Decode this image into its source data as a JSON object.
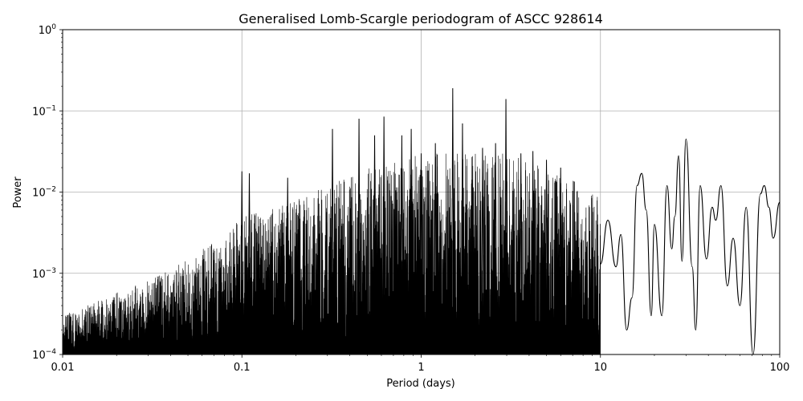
{
  "chart_data": {
    "type": "line",
    "title": "Generalised Lomb-Scargle periodogram of ASCC 928614",
    "xlabel": "Period (days)",
    "ylabel": "Power",
    "xscale": "log",
    "yscale": "log",
    "xlim": [
      0.01,
      100
    ],
    "ylim": [
      0.0001,
      1
    ],
    "grid": true,
    "x_ticks": [
      {
        "value": 0.01,
        "label": "0.01"
      },
      {
        "value": 0.1,
        "label": "0.1"
      },
      {
        "value": 1,
        "label": "1"
      },
      {
        "value": 10,
        "label": "10"
      },
      {
        "value": 100,
        "label": "100"
      }
    ],
    "y_ticks": [
      {
        "value": 0.0001,
        "base": "10",
        "exp": "−4"
      },
      {
        "value": 0.001,
        "base": "10",
        "exp": "−3"
      },
      {
        "value": 0.01,
        "base": "10",
        "exp": "−2"
      },
      {
        "value": 0.1,
        "base": "10",
        "exp": "−1"
      },
      {
        "value": 1,
        "base": "10",
        "exp": "0"
      }
    ],
    "series": [
      {
        "color": "#000000",
        "envelope": [
          [
            0.01,
            0.0003
          ],
          [
            0.02,
            0.0006
          ],
          [
            0.03,
            0.0008
          ],
          [
            0.05,
            0.0015
          ],
          [
            0.08,
            0.003
          ],
          [
            0.1,
            0.005
          ],
          [
            0.2,
            0.008
          ],
          [
            0.3,
            0.012
          ],
          [
            0.5,
            0.02
          ],
          [
            0.8,
            0.025
          ],
          [
            1.0,
            0.03
          ],
          [
            2.0,
            0.03
          ],
          [
            3.0,
            0.03
          ],
          [
            5.0,
            0.02
          ],
          [
            8.0,
            0.012
          ],
          [
            10.0,
            0.01
          ]
        ],
        "peaks": [
          [
            0.1,
            0.018
          ],
          [
            0.11,
            0.017
          ],
          [
            0.18,
            0.015
          ],
          [
            0.32,
            0.06
          ],
          [
            0.45,
            0.08
          ],
          [
            0.55,
            0.05
          ],
          [
            0.62,
            0.085
          ],
          [
            0.78,
            0.05
          ],
          [
            0.88,
            0.06
          ],
          [
            1.0,
            0.03
          ],
          [
            1.2,
            0.04
          ],
          [
            1.5,
            0.19
          ],
          [
            1.7,
            0.07
          ],
          [
            2.2,
            0.035
          ],
          [
            2.6,
            0.04
          ],
          [
            2.97,
            0.14
          ],
          [
            3.6,
            0.03
          ],
          [
            4.2,
            0.032
          ],
          [
            5.0,
            0.025
          ],
          [
            6.0,
            0.02
          ]
        ],
        "smooth": [
          [
            10.0,
            0.0013
          ],
          [
            11.0,
            0.0045
          ],
          [
            12.2,
            0.0012
          ],
          [
            13.0,
            0.003
          ],
          [
            14.0,
            0.0002
          ],
          [
            15.0,
            0.0005
          ],
          [
            16.0,
            0.012
          ],
          [
            17.0,
            0.017
          ],
          [
            18.0,
            0.006
          ],
          [
            19.2,
            0.0003
          ],
          [
            20.0,
            0.004
          ],
          [
            22.0,
            0.0003
          ],
          [
            23.5,
            0.012
          ],
          [
            25.0,
            0.002
          ],
          [
            26.0,
            0.005
          ],
          [
            27.3,
            0.028
          ],
          [
            28.5,
            0.0014
          ],
          [
            30.0,
            0.045
          ],
          [
            32.5,
            0.0012
          ],
          [
            34.0,
            0.0002
          ],
          [
            36.0,
            0.012
          ],
          [
            39.0,
            0.0015
          ],
          [
            42.0,
            0.0065
          ],
          [
            44.0,
            0.0045
          ],
          [
            47.0,
            0.012
          ],
          [
            51.0,
            0.0007
          ],
          [
            55.0,
            0.0027
          ],
          [
            60.0,
            0.0004
          ],
          [
            65.0,
            0.0065
          ],
          [
            71.0,
            0.0001
          ],
          [
            78.0,
            0.0095
          ],
          [
            82.0,
            0.012
          ],
          [
            87.0,
            0.0065
          ],
          [
            92.0,
            0.0027
          ],
          [
            100.0,
            0.0075
          ]
        ]
      }
    ]
  }
}
